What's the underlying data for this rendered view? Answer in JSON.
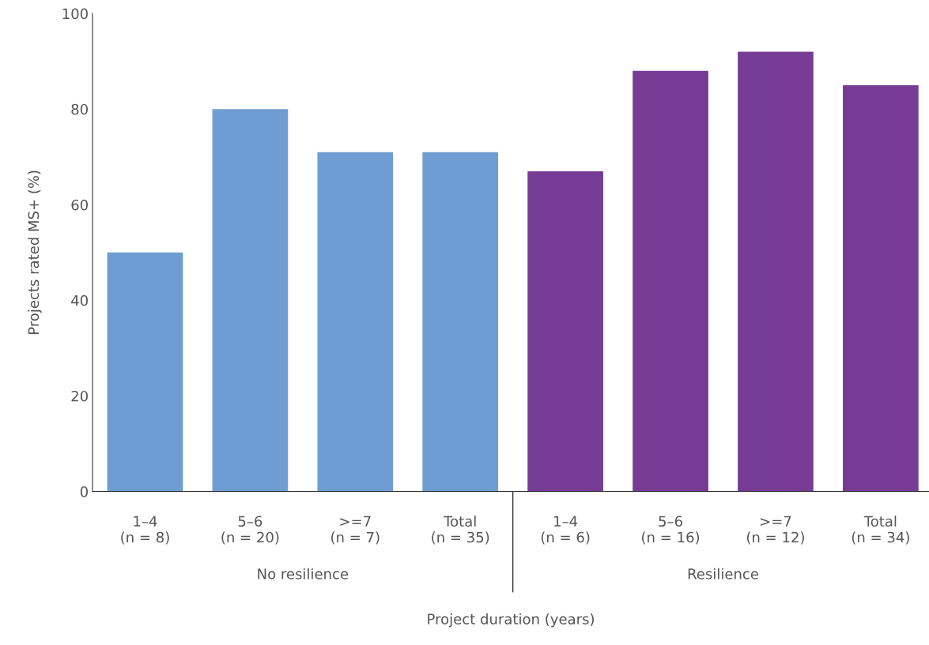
{
  "chart_data": {
    "type": "bar",
    "categories": [
      "1–4\n(n = 8)",
      "5–6\n(n = 20)",
      ">=7\n(n = 7)",
      "Total\n(n = 35)",
      "1–4\n(n = 6)",
      "5–6\n(n = 16)",
      ">=7\n(n = 12)",
      "Total\n(n = 34)"
    ],
    "values": [
      50,
      80,
      71,
      71,
      67,
      88,
      92,
      85
    ],
    "colors": [
      "#6f9dd3",
      "#6f9dd3",
      "#6f9dd3",
      "#6f9dd3",
      "#763c95",
      "#763c95",
      "#763c95",
      "#763c95"
    ],
    "xlabel": "Project duration (years)",
    "ylabel": "Projects rated MS+ (%)",
    "annotations": [
      "No resilience",
      "Resilience"
    ],
    "ylim": [
      0,
      100
    ],
    "yticks": [
      0,
      20,
      40,
      60,
      80,
      100
    ],
    "grid": false,
    "legend": false
  }
}
